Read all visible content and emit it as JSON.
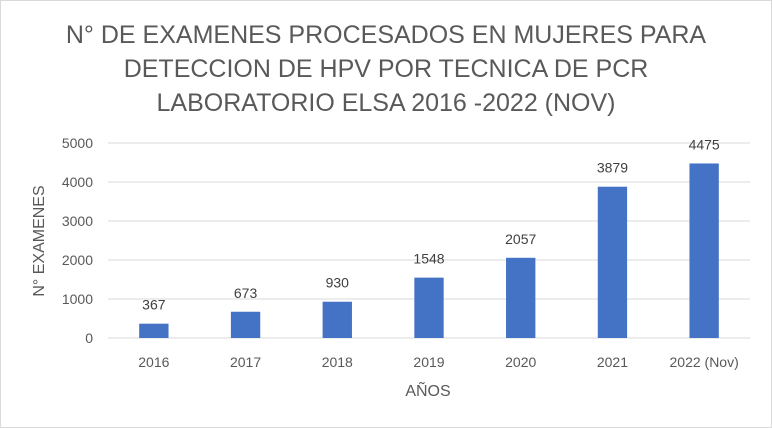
{
  "chart_data": {
    "type": "bar",
    "title_lines": [
      "N° DE EXAMENES PROCESADOS EN MUJERES PARA",
      "DETECCION DE HPV POR TECNICA DE PCR",
      "LABORATORIO ELSA 2016 -2022 (NOV)"
    ],
    "xlabel": "AÑOS",
    "ylabel": "N° EXAMENES",
    "categories": [
      "2016",
      "2017",
      "2018",
      "2019",
      "2020",
      "2021",
      "2022 (Nov)"
    ],
    "values": [
      367,
      673,
      930,
      1548,
      2057,
      3879,
      4475
    ],
    "ylim": [
      0,
      5000
    ],
    "yticks": [
      0,
      1000,
      2000,
      3000,
      4000,
      5000
    ],
    "grid": true,
    "legend": "none",
    "bar_color": "#4472c4"
  }
}
